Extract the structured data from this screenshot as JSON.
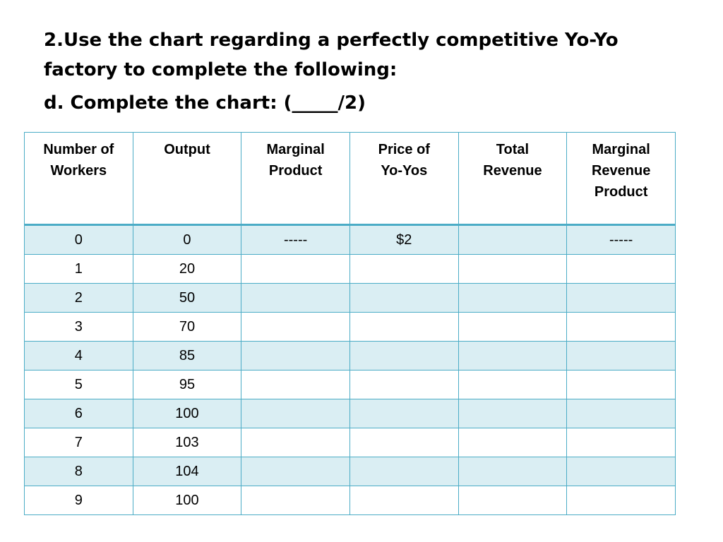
{
  "title": "2.Use the chart regarding a perfectly competitive Yo-Yo factory to complete the following:",
  "subtitle": "d. Complete the chart: (_____/2)",
  "colors": {
    "border": "#4bacc6",
    "band": "#daeef3"
  },
  "table": {
    "headers": [
      [
        "Number of",
        "Workers"
      ],
      [
        "Output"
      ],
      [
        "Marginal",
        "Product"
      ],
      [
        "Price of",
        "Yo-Yos"
      ],
      [
        "Total",
        "Revenue"
      ],
      [
        "Marginal",
        "Revenue",
        "Product"
      ]
    ],
    "rows": [
      [
        "0",
        "0",
        "-----",
        "$2",
        "",
        "-----"
      ],
      [
        "1",
        "20",
        "",
        "",
        "",
        ""
      ],
      [
        "2",
        "50",
        "",
        "",
        "",
        ""
      ],
      [
        "3",
        "70",
        "",
        "",
        "",
        ""
      ],
      [
        "4",
        "85",
        "",
        "",
        "",
        ""
      ],
      [
        "5",
        "95",
        "",
        "",
        "",
        ""
      ],
      [
        "6",
        "100",
        "",
        "",
        "",
        ""
      ],
      [
        "7",
        "103",
        "",
        "",
        "",
        ""
      ],
      [
        "8",
        "104",
        "",
        "",
        "",
        ""
      ],
      [
        "9",
        "100",
        "",
        "",
        "",
        ""
      ]
    ]
  }
}
